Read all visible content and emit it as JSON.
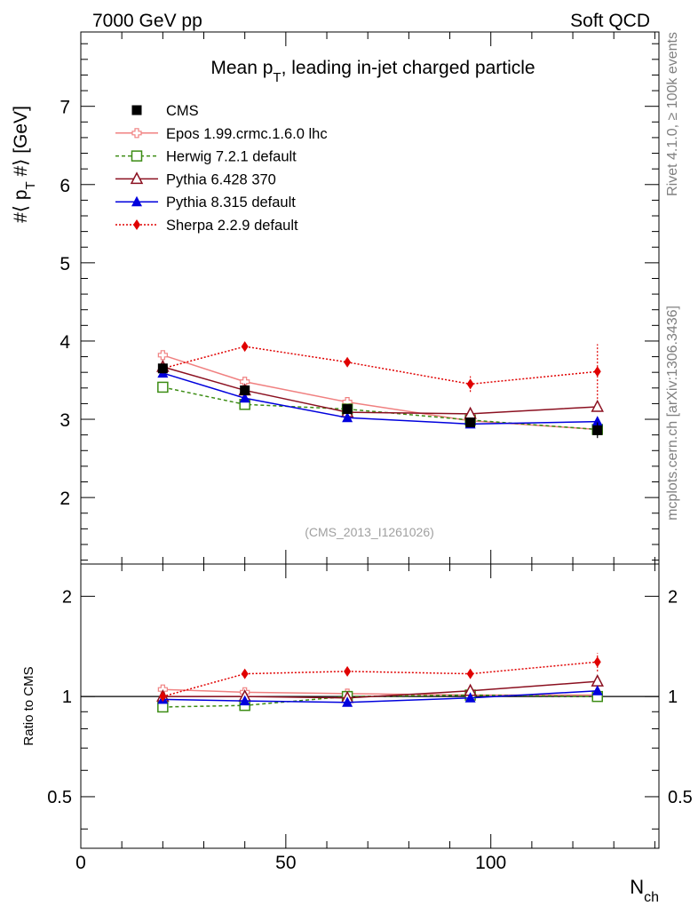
{
  "header": {
    "left": "7000 GeV pp",
    "right": "Soft QCD"
  },
  "side": {
    "rivet": "Rivet 4.1.0, ≥ 100k events",
    "site": "mcplots.cern.ch [arXiv:1306.3436]"
  },
  "chart_data": [
    {
      "type": "line",
      "title": "Mean p_T, leading in-jet charged particle",
      "xlabel": "N_ch",
      "ylabel": "#⟨ p_T #⟩ [GeV]",
      "watermark": "(CMS_2013_I1261026)",
      "xlim": [
        0,
        141
      ],
      "ylim": [
        1.15,
        7.95
      ],
      "yticks": [
        2,
        3,
        4,
        5,
        6,
        7
      ],
      "xticks": [
        0,
        50,
        100
      ],
      "x": [
        20,
        40,
        65,
        95,
        126
      ],
      "data": {
        "name": "CMS",
        "color": "#000000",
        "values": [
          3.65,
          3.37,
          3.13,
          2.96,
          2.86
        ],
        "errors": [
          0.05,
          0.05,
          0.05,
          0.06,
          0.1
        ]
      },
      "series": [
        {
          "name": "Epos 1.99.crmc.1.6.0 lhc",
          "color": "#f08080",
          "marker": "cross",
          "dash": "",
          "values": [
            3.82,
            3.48,
            3.22,
            2.98,
            2.87
          ],
          "errors": [
            0,
            0,
            0,
            0,
            0
          ]
        },
        {
          "name": "Herwig 7.2.1 default",
          "color": "#3c8c14",
          "marker": "square-open",
          "dash": "4,3",
          "values": [
            3.41,
            3.19,
            3.13,
            2.99,
            2.87
          ],
          "errors": [
            0,
            0,
            0,
            0.03,
            0.08
          ]
        },
        {
          "name": "Pythia 6.428 370",
          "color": "#8b1020",
          "marker": "triangle-open",
          "dash": "",
          "values": [
            3.67,
            3.37,
            3.09,
            3.07,
            3.16
          ],
          "errors": [
            0,
            0,
            0,
            0,
            0
          ]
        },
        {
          "name": "Pythia 8.315 default",
          "color": "#0000dd",
          "marker": "triangle",
          "dash": "",
          "values": [
            3.59,
            3.27,
            3.02,
            2.94,
            2.97
          ],
          "errors": [
            0,
            0,
            0,
            0,
            0
          ]
        },
        {
          "name": "Sherpa 2.2.9 default",
          "color": "#e00000",
          "marker": "diamond",
          "dash": "2,2",
          "values": [
            3.65,
            3.93,
            3.73,
            3.45,
            3.61
          ],
          "errors": [
            0,
            0,
            0,
            0.1,
            0.35
          ]
        }
      ]
    },
    {
      "type": "line",
      "title": "",
      "xlabel": "N_ch",
      "ylabel": "Ratio to CMS",
      "xlim": [
        0,
        141
      ],
      "ylim": [
        0.35,
        2.5
      ],
      "yscale": "log",
      "yticks": [
        0.5,
        1,
        2
      ],
      "xticks": [
        0,
        50,
        100
      ],
      "reference": 1,
      "x": [
        20,
        40,
        65,
        95,
        126
      ],
      "series": [
        {
          "name": "Epos 1.99.crmc.1.6.0 lhc",
          "values": [
            1.05,
            1.03,
            1.02,
            1.01,
            1.01
          ],
          "errors": [
            0,
            0,
            0,
            0,
            0
          ]
        },
        {
          "name": "Herwig 7.2.1 default",
          "values": [
            0.93,
            0.94,
            1.0,
            1.01,
            1.0
          ],
          "errors": [
            0,
            0,
            0,
            0.01,
            0.03
          ]
        },
        {
          "name": "Pythia 6.428 370",
          "values": [
            1.0,
            1.0,
            0.99,
            1.04,
            1.11
          ],
          "errors": [
            0,
            0,
            0,
            0,
            0
          ]
        },
        {
          "name": "Pythia 8.315 default",
          "values": [
            0.98,
            0.97,
            0.96,
            0.99,
            1.04
          ],
          "errors": [
            0,
            0,
            0,
            0,
            0
          ]
        },
        {
          "name": "Sherpa 2.2.9 default",
          "values": [
            1.0,
            1.17,
            1.19,
            1.17,
            1.27
          ],
          "errors": [
            0,
            0,
            0,
            0.02,
            0.08
          ]
        }
      ]
    }
  ]
}
